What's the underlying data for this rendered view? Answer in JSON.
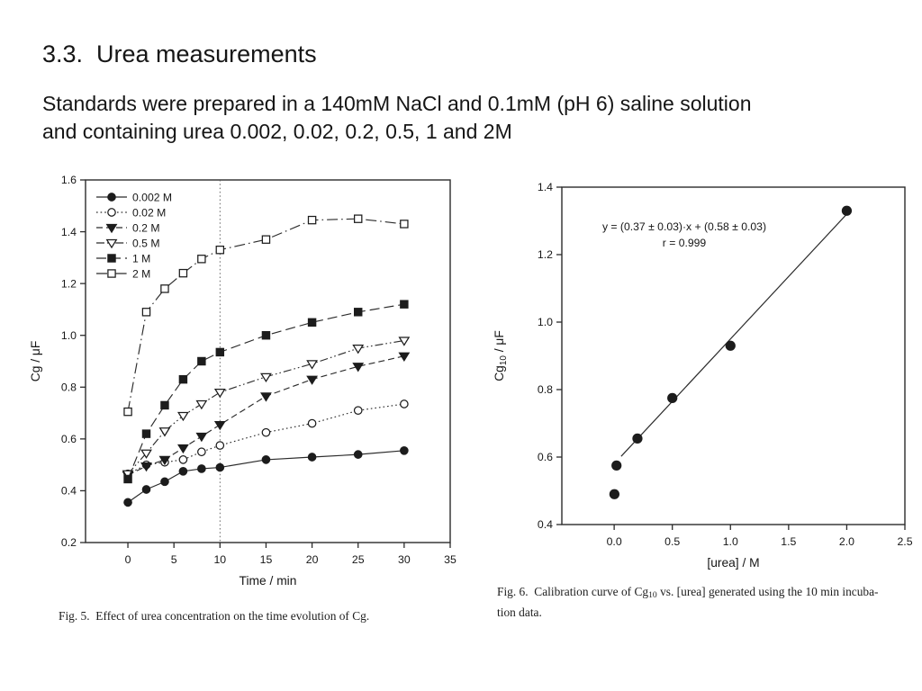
{
  "slide": {
    "title": "3.3.  Urea measurements",
    "intro_line1": "Standards were prepared in a 140mM NaCl and 0.1mM (pH 6) saline solution",
    "intro_line2": "and containing urea 0.002, 0.02, 0.2, 0.5, 1 and 2M"
  },
  "fig5": {
    "caption": "Fig. 5.  Effect of urea concentration on the time evolution of Cg."
  },
  "fig6": {
    "caption_pre": "Fig. 6.  Calibration curve of Cg",
    "caption_sub": "10",
    "caption_mid": " vs. [urea] generated using the 10 min incuba-",
    "caption_line2": "tion data."
  },
  "chart_data": [
    {
      "id": "fig5",
      "type": "line",
      "xlabel": "Time / min",
      "ylabel": "Cg / μF",
      "xlim": [
        -4.6,
        35
      ],
      "ylim": [
        0.2,
        1.6
      ],
      "xticks": [
        "0",
        "5",
        "10",
        "15",
        "20",
        "25",
        "30",
        "35"
      ],
      "yticks": [
        "0.2",
        "0.4",
        "0.6",
        "0.8",
        "1.0",
        "1.2",
        "1.4",
        "1.6"
      ],
      "grid": false,
      "legend_position": "top-left",
      "vline": {
        "x": 10,
        "style": "dotted"
      },
      "x": [
        0,
        2,
        4,
        6,
        8,
        10,
        15,
        20,
        25,
        30
      ],
      "series": [
        {
          "name": "0.002 M",
          "marker": "circle",
          "fill": "filled",
          "line": "solid",
          "values": [
            0.355,
            0.405,
            0.435,
            0.475,
            0.485,
            0.49,
            0.52,
            0.53,
            0.54,
            0.555
          ]
        },
        {
          "name": "0.02 M",
          "marker": "circle",
          "fill": "open",
          "line": "dotted",
          "values": [
            0.465,
            0.5,
            0.51,
            0.52,
            0.55,
            0.575,
            0.625,
            0.66,
            0.71,
            0.735
          ]
        },
        {
          "name": "0.2 M",
          "marker": "triangle-down",
          "fill": "filled",
          "line": "dashed",
          "values": [
            0.46,
            0.495,
            0.52,
            0.565,
            0.61,
            0.655,
            0.765,
            0.83,
            0.88,
            0.92
          ]
        },
        {
          "name": "0.5 M",
          "marker": "triangle-down",
          "fill": "open",
          "line": "dash-dot-dot",
          "values": [
            0.465,
            0.545,
            0.63,
            0.69,
            0.735,
            0.78,
            0.84,
            0.89,
            0.95,
            0.98
          ]
        },
        {
          "name": "1 M",
          "marker": "square",
          "fill": "filled",
          "line": "long-dash",
          "values": [
            0.445,
            0.62,
            0.73,
            0.83,
            0.9,
            0.935,
            1.0,
            1.05,
            1.09,
            1.12
          ]
        },
        {
          "name": "2 M",
          "marker": "square",
          "fill": "open",
          "line": "dash-dot",
          "values": [
            0.705,
            1.09,
            1.18,
            1.24,
            1.295,
            1.33,
            1.37,
            1.445,
            1.45,
            1.43
          ]
        }
      ]
    },
    {
      "id": "fig6",
      "type": "scatter",
      "xlabel": "[urea] / M",
      "ylabel_parts": {
        "pre": "Cg",
        "sub": "10",
        "post": " / μF"
      },
      "xlim": [
        -0.45,
        2.5
      ],
      "ylim": [
        0.4,
        1.4
      ],
      "xticks": [
        "0.0",
        "0.5",
        "1.0",
        "1.5",
        "2.0",
        "2.5"
      ],
      "yticks": [
        "0.4",
        "0.6",
        "0.8",
        "1.0",
        "1.2",
        "1.4"
      ],
      "grid": false,
      "marker": "circle",
      "fill": "filled",
      "x": [
        0.002,
        0.02,
        0.2,
        0.5,
        1.0,
        2.0
      ],
      "y": [
        0.49,
        0.575,
        0.655,
        0.775,
        0.93,
        1.33
      ],
      "fit": {
        "slope": 0.37,
        "slope_err": 0.03,
        "intercept": 0.58,
        "intercept_err": 0.03,
        "r": 0.999,
        "x_start": 0.06,
        "x_end": 2.03
      },
      "annotation_line1": "y = (0.37 ± 0.03)·x + (0.58 ± 0.03)",
      "annotation_line2": "r = 0.999"
    }
  ]
}
